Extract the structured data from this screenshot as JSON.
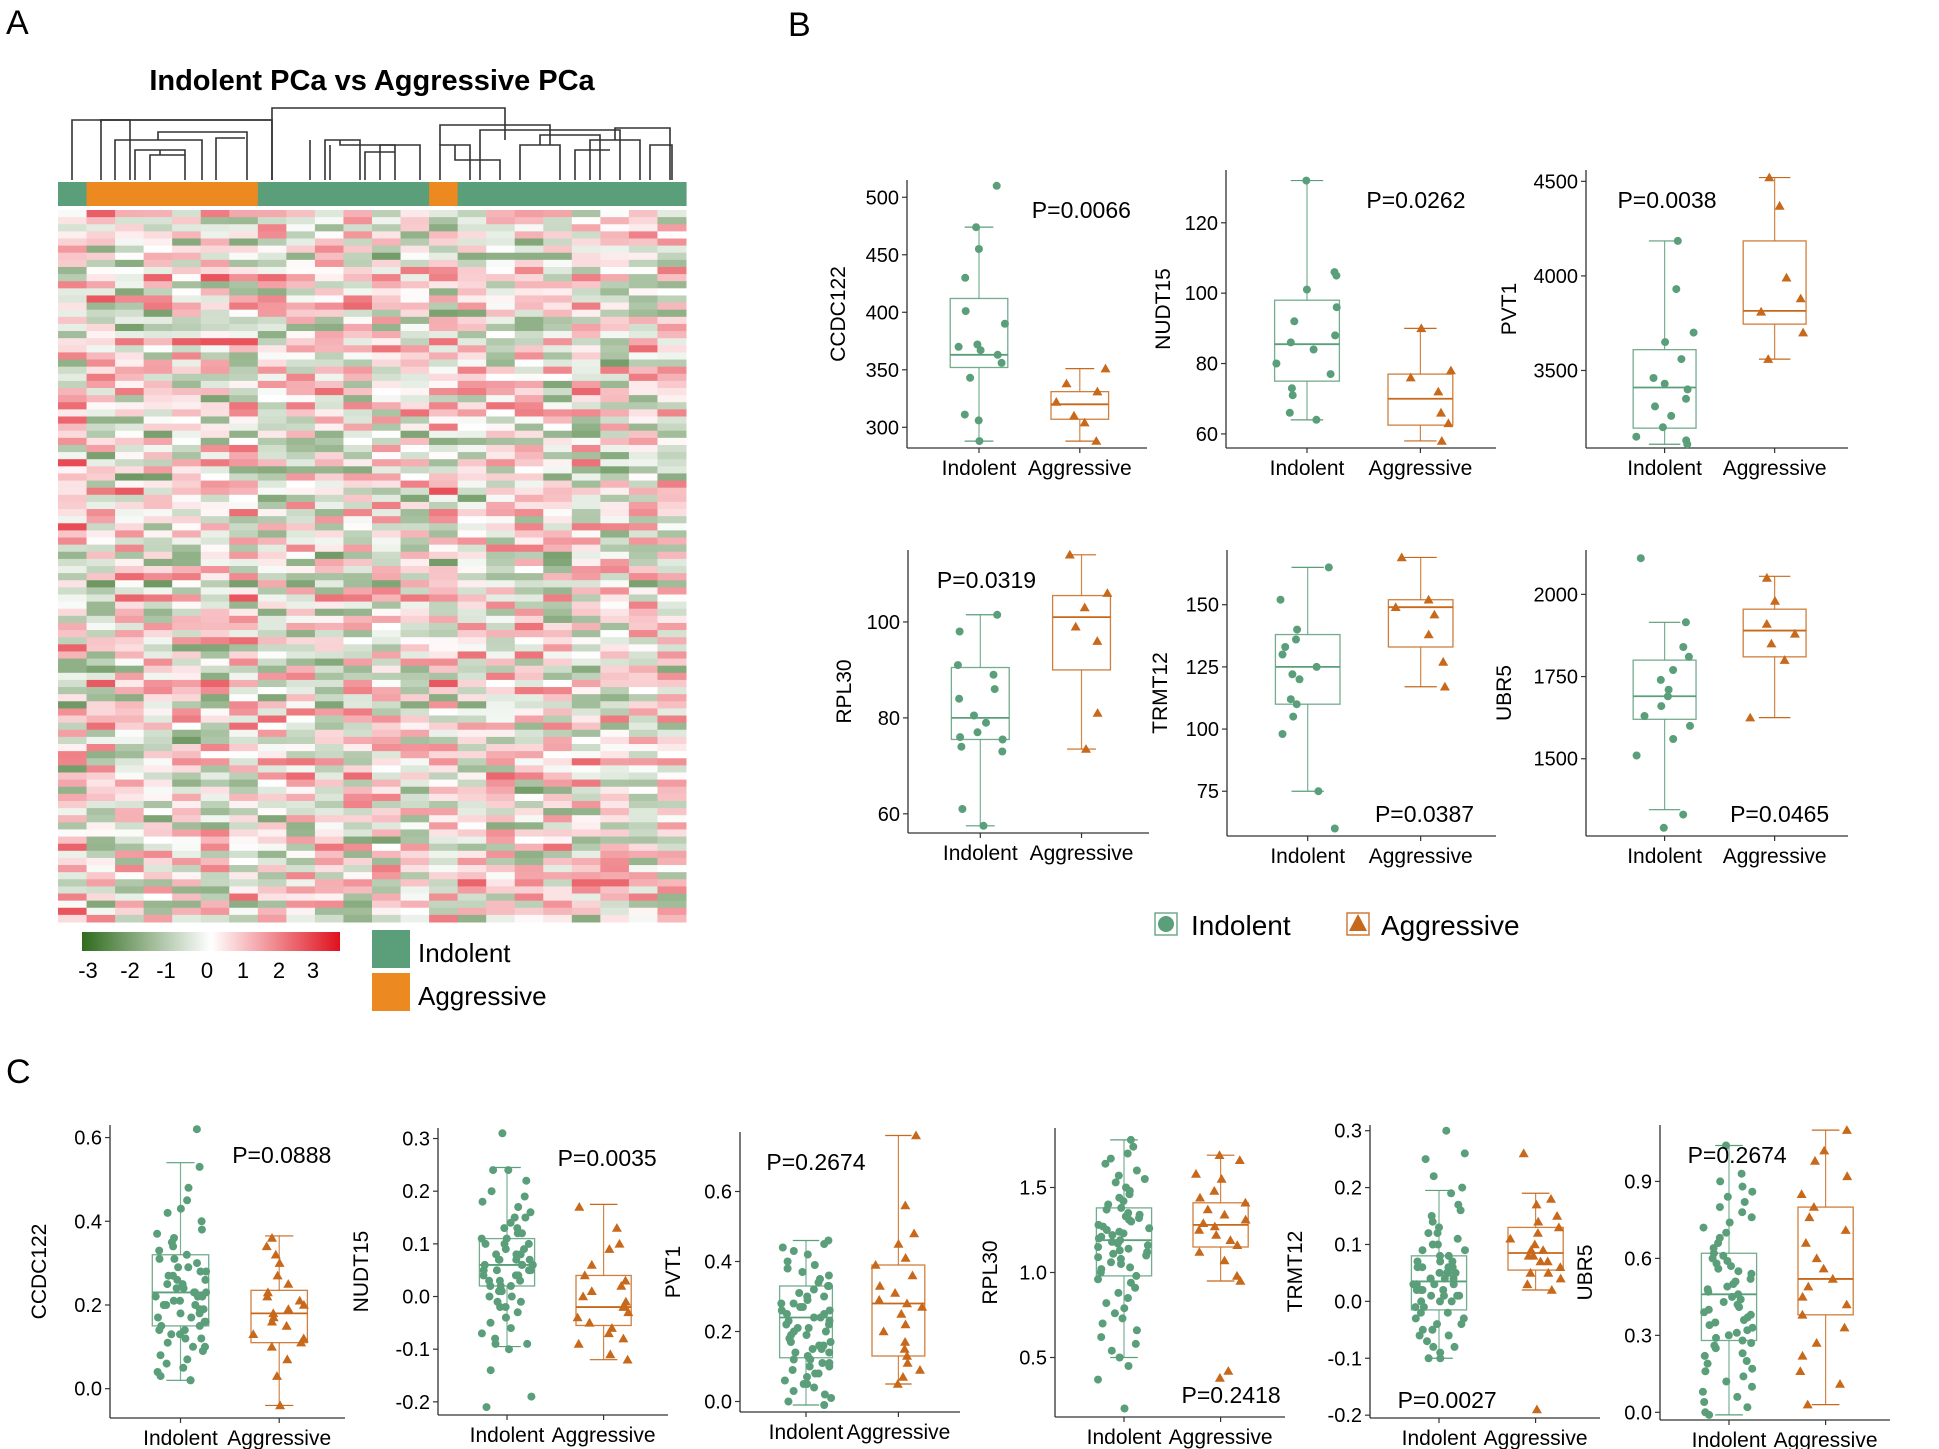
{
  "panel_labels": [
    "A",
    "B",
    "C"
  ],
  "colors": {
    "indolent": "#5a9e7a",
    "aggressive": "#c8681b",
    "bar_indolent": "#5a9e7a",
    "bar_aggressive": "#ec8a21",
    "axis": "#333333",
    "heat_low": "#2f6b1e",
    "heat_mid": "#ffffff",
    "heat_high": "#e0111d"
  },
  "chart_data": [
    {
      "id": "heatmap",
      "type": "heatmap",
      "title": "Indolent PCa vs Aggressive PCa",
      "n_cols": 22,
      "n_rows": 100,
      "column_groups": [
        "Indolent",
        "Aggressive",
        "Aggressive",
        "Aggressive",
        "Aggressive",
        "Aggressive",
        "Aggressive",
        "Indolent",
        "Indolent",
        "Indolent",
        "Indolent",
        "Indolent",
        "Indolent",
        "Aggressive",
        "Indolent",
        "Indolent",
        "Indolent",
        "Indolent",
        "Indolent",
        "Indolent",
        "Indolent",
        "Indolent"
      ],
      "color_scale": {
        "min": -3,
        "max": 3,
        "ticks": [
          "-3",
          "-2",
          "-1",
          "0",
          "1",
          "2",
          "3"
        ]
      },
      "legend": [
        "Indolent",
        "Aggressive"
      ]
    },
    {
      "id": "b_ccdc122",
      "type": "box",
      "ylabel": "CCDC122",
      "categories": [
        "Indolent",
        "Aggressive"
      ],
      "pvalue": "P=0.0066",
      "p_pos": "top-right",
      "yticks": [
        300,
        350,
        400,
        450,
        500
      ],
      "ylim": [
        282,
        515
      ],
      "box": [
        [
          288,
          352,
          363,
          412,
          474
        ],
        [
          288,
          307,
          320,
          331,
          351
        ]
      ],
      "points": [
        [
          510,
          474,
          455,
          430,
          401,
          390,
          372,
          370,
          367,
          363,
          356,
          343,
          311,
          306,
          288
        ],
        [
          351,
          338,
          331,
          322,
          310,
          304,
          288
        ]
      ]
    },
    {
      "id": "b_nudt15",
      "type": "box",
      "ylabel": "NUDT15",
      "categories": [
        "Indolent",
        "Aggressive"
      ],
      "pvalue": "P=0.0262",
      "p_pos": "top-right",
      "yticks": [
        60,
        80,
        100,
        120
      ],
      "ylim": [
        56,
        135
      ],
      "box": [
        [
          64,
          75,
          85.5,
          98,
          132
        ],
        [
          58,
          62.5,
          70,
          77,
          90
        ]
      ],
      "points": [
        [
          132,
          106,
          105,
          101,
          96,
          92,
          88,
          86,
          84,
          80,
          77,
          73,
          71,
          66,
          64
        ],
        [
          90,
          78,
          76,
          72,
          66,
          63,
          58
        ]
      ]
    },
    {
      "id": "b_pvt1",
      "type": "box",
      "ylabel": "PVT1",
      "categories": [
        "Indolent",
        "Aggressive"
      ],
      "pvalue": "P=0.0038",
      "p_pos": "top-left",
      "yticks": [
        3500,
        4000,
        4500
      ],
      "ylim": [
        3090,
        4560
      ],
      "box": [
        [
          3110,
          3195,
          3410,
          3610,
          4185
        ],
        [
          3560,
          3745,
          3815,
          4185,
          4520
        ]
      ],
      "points": [
        [
          4185,
          3930,
          3700,
          3650,
          3560,
          3460,
          3430,
          3400,
          3350,
          3310,
          3260,
          3200,
          3150,
          3130,
          3110
        ],
        [
          4520,
          4370,
          3990,
          3880,
          3810,
          3700,
          3560
        ]
      ]
    },
    {
      "id": "b_rpl30",
      "type": "box",
      "ylabel": "RPL30",
      "categories": [
        "Indolent",
        "Aggressive"
      ],
      "pvalue": "P=0.0319",
      "p_pos": "top-left",
      "yticks": [
        60,
        80,
        100
      ],
      "ylim": [
        56,
        115
      ],
      "box": [
        [
          57.5,
          75.5,
          80,
          90.5,
          101.5
        ],
        [
          73.5,
          90,
          101,
          105.5,
          114
        ]
      ],
      "points": [
        [
          101.5,
          98,
          91,
          89,
          86,
          84,
          80.5,
          79,
          77,
          76,
          75.5,
          74,
          73,
          61,
          57.5
        ],
        [
          114,
          106,
          103,
          99,
          96,
          81,
          73.5
        ]
      ]
    },
    {
      "id": "b_trmt12",
      "type": "box",
      "ylabel": "TRMT12",
      "categories": [
        "Indolent",
        "Aggressive"
      ],
      "pvalue": "P=0.0387",
      "p_pos": "bottom-right",
      "yticks": [
        75,
        100,
        125,
        150
      ],
      "ylim": [
        57,
        172
      ],
      "box": [
        [
          75,
          110,
          125,
          138,
          165
        ],
        [
          117,
          133,
          149,
          152,
          169
        ]
      ],
      "points": [
        [
          165,
          152,
          140,
          136,
          133,
          130,
          125,
          122,
          120,
          112,
          110,
          105,
          98,
          75,
          60
        ],
        [
          169,
          152,
          149,
          146,
          138,
          127,
          117
        ]
      ]
    },
    {
      "id": "b_ubr5",
      "type": "box",
      "ylabel": "UBR5",
      "categories": [
        "Indolent",
        "Aggressive"
      ],
      "pvalue": "P=0.0465",
      "p_pos": "bottom-right",
      "yticks": [
        1500,
        1750,
        2000
      ],
      "ylim": [
        1265,
        2135
      ],
      "box": [
        [
          1345,
          1620,
          1690,
          1800,
          1915
        ],
        [
          1625,
          1810,
          1890,
          1955,
          2055
        ]
      ],
      "points": [
        [
          2110,
          1915,
          1840,
          1810,
          1770,
          1740,
          1710,
          1690,
          1660,
          1630,
          1600,
          1560,
          1510,
          1330,
          1290
        ],
        [
          2050,
          1980,
          1910,
          1880,
          1850,
          1800,
          1625
        ]
      ]
    },
    {
      "id": "c_ccdc122",
      "type": "box",
      "ylabel": "CCDC122",
      "categories": [
        "Indolent",
        "Aggressive"
      ],
      "pvalue": "P=0.0888",
      "p_pos": "top-right",
      "yticks": [
        0.0,
        0.2,
        0.4,
        0.6
      ],
      "ylim": [
        -0.07,
        0.63
      ],
      "n": [
        68,
        22
      ],
      "box": [
        [
          0.02,
          0.15,
          0.23,
          0.32,
          0.54
        ],
        [
          -0.04,
          0.11,
          0.18,
          0.235,
          0.365
        ]
      ],
      "points": [
        [
          0.62,
          0.53,
          0.48,
          0.45,
          0.43,
          0.42,
          0.4,
          0.38,
          0.37,
          0.36,
          0.35,
          0.34,
          0.33,
          0.32,
          0.31,
          0.31,
          0.3,
          0.29,
          0.29,
          0.28,
          0.28,
          0.27,
          0.27,
          0.26,
          0.26,
          0.25,
          0.25,
          0.24,
          0.24,
          0.23,
          0.23,
          0.23,
          0.22,
          0.22,
          0.22,
          0.21,
          0.21,
          0.2,
          0.2,
          0.2,
          0.19,
          0.19,
          0.18,
          0.18,
          0.17,
          0.17,
          0.16,
          0.16,
          0.15,
          0.15,
          0.14,
          0.14,
          0.13,
          0.13,
          0.12,
          0.12,
          0.11,
          0.1,
          0.1,
          0.09,
          0.08,
          0.07,
          0.06,
          0.05,
          0.04,
          0.03,
          0.02,
          0.02
        ],
        [
          0.36,
          0.34,
          0.32,
          0.3,
          0.27,
          0.25,
          0.23,
          0.22,
          0.21,
          0.2,
          0.19,
          0.18,
          0.17,
          0.16,
          0.15,
          0.13,
          0.12,
          0.11,
          0.1,
          0.07,
          0.03,
          -0.04
        ]
      ]
    },
    {
      "id": "c_nudt15",
      "type": "box",
      "ylabel": "NUDT15",
      "categories": [
        "Indolent",
        "Aggressive"
      ],
      "pvalue": "P=0.0035",
      "p_pos": "top-right",
      "yticks": [
        -0.2,
        -0.1,
        0.0,
        0.1,
        0.2,
        0.3
      ],
      "ylim": [
        -0.225,
        0.32
      ],
      "n": [
        68,
        22
      ],
      "box": [
        [
          -0.095,
          0.02,
          0.06,
          0.11,
          0.245
        ],
        [
          -0.12,
          -0.055,
          -0.02,
          0.04,
          0.175
        ]
      ],
      "points": [
        [
          0.31,
          0.24,
          0.24,
          0.22,
          0.2,
          0.19,
          0.18,
          0.17,
          0.16,
          0.15,
          0.15,
          0.14,
          0.13,
          0.13,
          0.12,
          0.12,
          0.11,
          0.11,
          0.1,
          0.1,
          0.1,
          0.09,
          0.09,
          0.08,
          0.08,
          0.08,
          0.07,
          0.07,
          0.07,
          0.06,
          0.06,
          0.06,
          0.06,
          0.05,
          0.05,
          0.05,
          0.04,
          0.04,
          0.04,
          0.03,
          0.03,
          0.03,
          0.02,
          0.02,
          0.02,
          0.01,
          0.01,
          0.0,
          0.0,
          -0.01,
          -0.01,
          -0.02,
          -0.02,
          -0.03,
          -0.04,
          -0.04,
          -0.05,
          -0.06,
          -0.07,
          -0.08,
          -0.09,
          -0.09,
          -0.1,
          -0.14,
          -0.19,
          -0.21,
          0.05,
          0.07
        ],
        [
          0.17,
          0.13,
          0.09,
          0.06,
          0.04,
          0.03,
          0.02,
          0.01,
          0.0,
          -0.01,
          -0.02,
          -0.02,
          -0.03,
          -0.04,
          -0.05,
          -0.06,
          -0.07,
          -0.08,
          -0.09,
          -0.11,
          -0.12,
          0.1
        ]
      ]
    },
    {
      "id": "c_pvt1",
      "type": "box",
      "ylabel": "PVT1",
      "categories": [
        "Indolent",
        "Aggressive"
      ],
      "pvalue": "P=0.2674",
      "p_pos": "top-left",
      "yticks": [
        0.0,
        0.2,
        0.4,
        0.6
      ],
      "ylim": [
        -0.03,
        0.77
      ],
      "n": [
        68,
        22
      ],
      "box": [
        [
          -0.01,
          0.125,
          0.24,
          0.33,
          0.46
        ],
        [
          0.05,
          0.13,
          0.28,
          0.39,
          0.76
        ]
      ],
      "points": [
        [
          0.46,
          0.45,
          0.44,
          0.43,
          0.42,
          0.4,
          0.39,
          0.38,
          0.37,
          0.36,
          0.35,
          0.34,
          0.33,
          0.33,
          0.32,
          0.31,
          0.3,
          0.3,
          0.29,
          0.28,
          0.28,
          0.27,
          0.26,
          0.26,
          0.25,
          0.25,
          0.24,
          0.24,
          0.23,
          0.23,
          0.22,
          0.22,
          0.21,
          0.2,
          0.2,
          0.19,
          0.19,
          0.18,
          0.17,
          0.17,
          0.16,
          0.16,
          0.15,
          0.15,
          0.14,
          0.14,
          0.13,
          0.12,
          0.12,
          0.11,
          0.1,
          0.1,
          0.09,
          0.08,
          0.08,
          0.07,
          0.06,
          0.05,
          0.05,
          0.04,
          0.03,
          0.02,
          0.01,
          0.0,
          -0.01,
          0.11,
          0.21,
          0.27
        ],
        [
          0.76,
          0.56,
          0.48,
          0.45,
          0.41,
          0.39,
          0.36,
          0.33,
          0.31,
          0.29,
          0.28,
          0.27,
          0.25,
          0.22,
          0.2,
          0.17,
          0.15,
          0.13,
          0.11,
          0.09,
          0.07,
          0.05
        ]
      ]
    },
    {
      "id": "c_rpl30",
      "type": "box",
      "ylabel": "RPL30",
      "categories": [
        "Indolent",
        "Aggressive"
      ],
      "pvalue": "P=0.2418",
      "p_pos": "bottom-right",
      "yticks": [
        0.5,
        1.0,
        1.5
      ],
      "ylim": [
        0.15,
        1.85
      ],
      "n": [
        68,
        22
      ],
      "box": [
        [
          0.5,
          0.98,
          1.19,
          1.38,
          1.78
        ],
        [
          0.95,
          1.15,
          1.28,
          1.41,
          1.69
        ]
      ],
      "points": [
        [
          1.78,
          1.74,
          1.7,
          1.67,
          1.64,
          1.6,
          1.57,
          1.55,
          1.53,
          1.5,
          1.48,
          1.46,
          1.44,
          1.42,
          1.4,
          1.38,
          1.37,
          1.35,
          1.34,
          1.32,
          1.31,
          1.3,
          1.28,
          1.27,
          1.26,
          1.25,
          1.24,
          1.23,
          1.22,
          1.21,
          1.2,
          1.19,
          1.18,
          1.17,
          1.16,
          1.15,
          1.14,
          1.13,
          1.12,
          1.11,
          1.1,
          1.09,
          1.08,
          1.06,
          1.05,
          1.03,
          1.02,
          1.0,
          0.98,
          0.96,
          0.94,
          0.91,
          0.88,
          0.85,
          0.82,
          0.79,
          0.76,
          0.73,
          0.7,
          0.66,
          0.62,
          0.58,
          0.54,
          0.5,
          0.45,
          0.37,
          0.2,
          1.33
        ],
        [
          1.69,
          1.66,
          1.58,
          1.55,
          1.48,
          1.44,
          1.41,
          1.37,
          1.34,
          1.31,
          1.29,
          1.27,
          1.25,
          1.22,
          1.19,
          1.16,
          1.12,
          1.07,
          0.98,
          0.95,
          0.42,
          0.38
        ]
      ]
    },
    {
      "id": "c_trmt12",
      "type": "box",
      "ylabel": "TRMT12",
      "categories": [
        "Indolent",
        "Aggressive"
      ],
      "pvalue": "P=0.0027",
      "p_pos": "bottom-left",
      "yticks": [
        -0.2,
        -0.1,
        0.0,
        0.1,
        0.2,
        0.3
      ],
      "ylim": [
        -0.205,
        0.31
      ],
      "n": [
        68,
        22
      ],
      "box": [
        [
          -0.1,
          -0.015,
          0.035,
          0.08,
          0.195
        ],
        [
          0.02,
          0.055,
          0.085,
          0.13,
          0.19
        ]
      ],
      "points": [
        [
          0.3,
          0.26,
          0.25,
          0.22,
          0.2,
          0.19,
          0.17,
          0.16,
          0.15,
          0.14,
          0.13,
          0.12,
          0.12,
          0.11,
          0.1,
          0.1,
          0.09,
          0.09,
          0.08,
          0.08,
          0.07,
          0.07,
          0.06,
          0.06,
          0.06,
          0.05,
          0.05,
          0.05,
          0.04,
          0.04,
          0.04,
          0.03,
          0.03,
          0.03,
          0.02,
          0.02,
          0.02,
          0.01,
          0.01,
          0.01,
          0.0,
          0.0,
          0.0,
          -0.01,
          -0.01,
          -0.02,
          -0.02,
          -0.03,
          -0.03,
          -0.04,
          -0.04,
          -0.05,
          -0.05,
          -0.06,
          -0.06,
          -0.07,
          -0.08,
          -0.08,
          -0.09,
          -0.1,
          -0.1,
          0.02,
          0.04,
          0.06,
          0.01,
          0.03,
          0.05,
          0.07
        ],
        [
          0.26,
          0.18,
          0.17,
          0.15,
          0.14,
          0.13,
          0.12,
          0.11,
          0.1,
          0.09,
          0.09,
          0.08,
          0.08,
          0.07,
          0.07,
          0.06,
          0.05,
          0.05,
          0.04,
          0.03,
          0.02,
          -0.19
        ]
      ]
    },
    {
      "id": "c_ubr5",
      "type": "box",
      "ylabel": "UBR5",
      "categories": [
        "Indolent",
        "Aggressive"
      ],
      "pvalue": "P=0.2674",
      "p_pos": "top-left",
      "yticks": [
        0.0,
        0.3,
        0.6,
        0.9
      ],
      "ylim": [
        -0.03,
        1.12
      ],
      "n": [
        68,
        22
      ],
      "box": [
        [
          -0.01,
          0.28,
          0.46,
          0.62,
          1.04
        ],
        [
          0.03,
          0.38,
          0.52,
          0.8,
          1.1
        ]
      ],
      "points": [
        [
          1.04,
          0.93,
          0.9,
          0.88,
          0.86,
          0.84,
          0.82,
          0.8,
          0.78,
          0.76,
          0.74,
          0.72,
          0.7,
          0.68,
          0.66,
          0.64,
          0.62,
          0.6,
          0.59,
          0.58,
          0.56,
          0.55,
          0.54,
          0.52,
          0.51,
          0.5,
          0.49,
          0.48,
          0.47,
          0.46,
          0.45,
          0.44,
          0.43,
          0.42,
          0.41,
          0.4,
          0.39,
          0.38,
          0.37,
          0.36,
          0.35,
          0.34,
          0.33,
          0.32,
          0.31,
          0.3,
          0.29,
          0.28,
          0.27,
          0.26,
          0.25,
          0.23,
          0.22,
          0.2,
          0.19,
          0.17,
          0.16,
          0.14,
          0.12,
          0.1,
          0.08,
          0.06,
          0.04,
          0.02,
          0.0,
          -0.01,
          0.57,
          0.61
        ],
        [
          1.1,
          1.02,
          0.98,
          0.92,
          0.85,
          0.8,
          0.76,
          0.71,
          0.66,
          0.6,
          0.56,
          0.52,
          0.49,
          0.45,
          0.42,
          0.38,
          0.33,
          0.27,
          0.22,
          0.16,
          0.11,
          0.03
        ]
      ]
    }
  ],
  "legend_b": {
    "indolent": "Indolent",
    "aggressive": "Aggressive"
  }
}
